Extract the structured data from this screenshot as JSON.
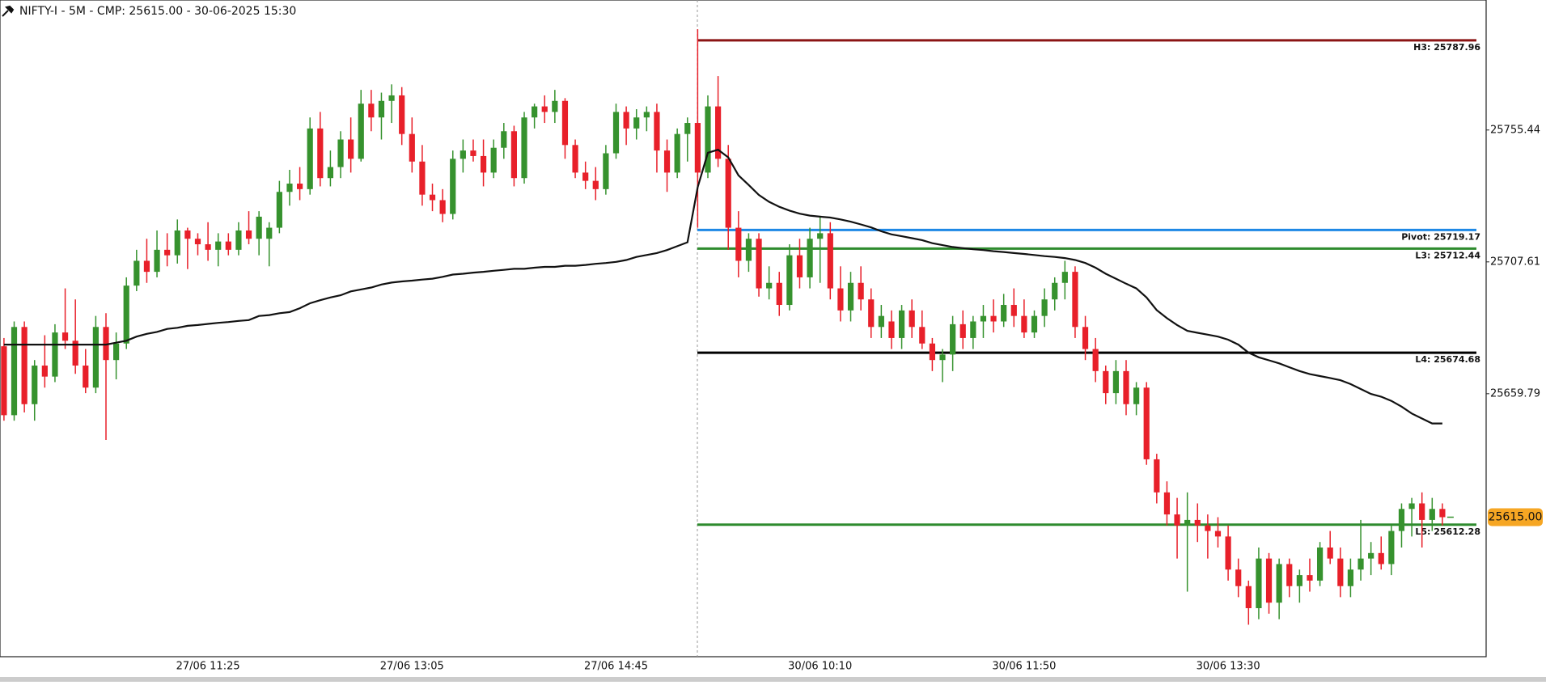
{
  "chart_data": {
    "type": "candlestick",
    "title": "NIFTY-I - 5M -  CMP: 25615.00 - 30-06-2025 15:30",
    "ylim": [
      25564.4,
      25802.6
    ],
    "yticks": [
      25659.79,
      25707.61,
      25755.44
    ],
    "up_color": "#36922e",
    "down_color": "#e8202a",
    "line_color": "#111111",
    "last_price": {
      "value": 25615,
      "label": "25615.00",
      "color": "#f6a623"
    },
    "categories": [
      null,
      null,
      null,
      null,
      null,
      null,
      null,
      null,
      null,
      null,
      null,
      null,
      null,
      null,
      null,
      null,
      null,
      null,
      null,
      null,
      "27/06 11:25",
      null,
      null,
      null,
      null,
      null,
      null,
      null,
      null,
      null,
      null,
      null,
      null,
      null,
      null,
      null,
      null,
      null,
      null,
      null,
      "27/06 13:05",
      null,
      null,
      null,
      null,
      null,
      null,
      null,
      null,
      null,
      null,
      null,
      null,
      null,
      null,
      null,
      null,
      null,
      null,
      null,
      "27/06 14:45",
      null,
      null,
      null,
      null,
      null,
      null,
      null,
      null,
      null,
      null,
      null,
      null,
      null,
      null,
      null,
      null,
      null,
      null,
      null,
      "30/06 10:10",
      null,
      null,
      null,
      null,
      null,
      null,
      null,
      null,
      null,
      null,
      null,
      null,
      null,
      null,
      null,
      null,
      null,
      null,
      null,
      "30/06 11:50",
      null,
      null,
      null,
      null,
      null,
      null,
      null,
      null,
      null,
      null,
      null,
      null,
      null,
      null,
      null,
      null,
      null,
      null,
      null,
      "30/06 13:30",
      null,
      null,
      null,
      null,
      null,
      null,
      null,
      null,
      null,
      null,
      null,
      null,
      null,
      null,
      null,
      null,
      null,
      null,
      null,
      null
    ],
    "ohlc": [
      [
        25677,
        25680,
        25650,
        25652
      ],
      [
        25652,
        25686,
        25650,
        25684
      ],
      [
        25684,
        25686,
        25653,
        25656
      ],
      [
        25656,
        25672,
        25650,
        25670
      ],
      [
        25670,
        25681,
        25662,
        25666
      ],
      [
        25666,
        25685,
        25664,
        25682
      ],
      [
        25682,
        25698,
        25676,
        25679
      ],
      [
        25679,
        25694,
        25667,
        25670
      ],
      [
        25670,
        25676,
        25660,
        25662
      ],
      [
        25662,
        25688,
        25660,
        25684
      ],
      [
        25684,
        25689,
        25643,
        25672
      ],
      [
        25672,
        25682,
        25665,
        25678
      ],
      [
        25678,
        25702,
        25676,
        25699
      ],
      [
        25699,
        25712,
        25697,
        25708
      ],
      [
        25708,
        25716,
        25700,
        25704
      ],
      [
        25704,
        25719,
        25702,
        25712
      ],
      [
        25712,
        25718,
        25706,
        25710
      ],
      [
        25710,
        25723,
        25707,
        25719
      ],
      [
        25719,
        25720,
        25705,
        25716
      ],
      [
        25716,
        25718,
        25710,
        25714
      ],
      [
        25714,
        25722,
        25708,
        25712
      ],
      [
        25712,
        25718,
        25706,
        25715
      ],
      [
        25715,
        25718,
        25710,
        25712
      ],
      [
        25712,
        25722,
        25710,
        25719
      ],
      [
        25719,
        25726,
        25714,
        25716
      ],
      [
        25716,
        25726,
        25710,
        25724
      ],
      [
        25716,
        25722,
        25706,
        25720
      ],
      [
        25720,
        25737,
        25718,
        25733
      ],
      [
        25733,
        25741,
        25728,
        25736
      ],
      [
        25736,
        25742,
        25730,
        25734
      ],
      [
        25734,
        25760,
        25732,
        25756
      ],
      [
        25756,
        25762,
        25735,
        25738
      ],
      [
        25738,
        25748,
        25735,
        25742
      ],
      [
        25742,
        25755,
        25738,
        25752
      ],
      [
        25752,
        25760,
        25740,
        25745
      ],
      [
        25745,
        25770,
        25744,
        25765
      ],
      [
        25765,
        25770,
        25755,
        25760
      ],
      [
        25760,
        25769,
        25752,
        25766
      ],
      [
        25766,
        25772,
        25758,
        25768
      ],
      [
        25768,
        25771,
        25750,
        25754
      ],
      [
        25754,
        25760,
        25740,
        25744
      ],
      [
        25744,
        25750,
        25728,
        25732
      ],
      [
        25732,
        25736,
        25726,
        25730
      ],
      [
        25730,
        25734,
        25722,
        25725
      ],
      [
        25725,
        25748,
        25723,
        25745
      ],
      [
        25745,
        25752,
        25740,
        25748
      ],
      [
        25748,
        25752,
        25744,
        25746
      ],
      [
        25746,
        25752,
        25735,
        25740
      ],
      [
        25740,
        25752,
        25738,
        25749
      ],
      [
        25749,
        25758,
        25745,
        25755
      ],
      [
        25755,
        25757,
        25735,
        25738
      ],
      [
        25738,
        25762,
        25736,
        25760
      ],
      [
        25760,
        25765,
        25756,
        25764
      ],
      [
        25764,
        25768,
        25758,
        25762
      ],
      [
        25762,
        25770,
        25758,
        25766
      ],
      [
        25766,
        25767,
        25745,
        25750
      ],
      [
        25750,
        25752,
        25738,
        25740
      ],
      [
        25740,
        25744,
        25734,
        25737
      ],
      [
        25737,
        25742,
        25730,
        25734
      ],
      [
        25734,
        25750,
        25732,
        25747
      ],
      [
        25747,
        25765,
        25745,
        25762
      ],
      [
        25762,
        25764,
        25750,
        25756
      ],
      [
        25756,
        25763,
        25752,
        25760
      ],
      [
        25760,
        25764,
        25755,
        25762
      ],
      [
        25762,
        25765,
        25740,
        25748
      ],
      [
        25748,
        25752,
        25733,
        25740
      ],
      [
        25740,
        25756,
        25738,
        25754
      ],
      [
        25754,
        25760,
        25744,
        25758
      ],
      [
        25758,
        25792,
        25720,
        25740
      ],
      [
        25740,
        25768,
        25738,
        25764
      ],
      [
        25764,
        25775,
        25742,
        25745
      ],
      [
        25745,
        25750,
        25712,
        25720
      ],
      [
        25720,
        25726,
        25702,
        25708
      ],
      [
        25708,
        25718,
        25704,
        25716
      ],
      [
        25716,
        25718,
        25695,
        25698
      ],
      [
        25698,
        25706,
        25694,
        25700
      ],
      [
        25700,
        25704,
        25688,
        25692
      ],
      [
        25692,
        25714,
        25690,
        25710
      ],
      [
        25710,
        25716,
        25698,
        25702
      ],
      [
        25702,
        25720,
        25698,
        25716
      ],
      [
        25716,
        25724,
        25700,
        25718
      ],
      [
        25718,
        25722,
        25694,
        25698
      ],
      [
        25698,
        25706,
        25686,
        25690
      ],
      [
        25690,
        25704,
        25686,
        25700
      ],
      [
        25700,
        25706,
        25690,
        25694
      ],
      [
        25694,
        25698,
        25680,
        25684
      ],
      [
        25684,
        25692,
        25680,
        25688
      ],
      [
        25686,
        25690,
        25676,
        25680
      ],
      [
        25680,
        25692,
        25676,
        25690
      ],
      [
        25690,
        25694,
        25680,
        25684
      ],
      [
        25684,
        25690,
        25676,
        25678
      ],
      [
        25678,
        25680,
        25668,
        25672
      ],
      [
        25672,
        25676,
        25664,
        25674
      ],
      [
        25674,
        25688,
        25668,
        25685
      ],
      [
        25685,
        25690,
        25676,
        25680
      ],
      [
        25680,
        25688,
        25676,
        25686
      ],
      [
        25686,
        25692,
        25680,
        25688
      ],
      [
        25688,
        25694,
        25682,
        25686
      ],
      [
        25686,
        25696,
        25684,
        25692
      ],
      [
        25692,
        25698,
        25684,
        25688
      ],
      [
        25688,
        25694,
        25680,
        25682
      ],
      [
        25682,
        25690,
        25680,
        25688
      ],
      [
        25688,
        25698,
        25684,
        25694
      ],
      [
        25694,
        25702,
        25690,
        25700
      ],
      [
        25700,
        25708,
        25694,
        25704
      ],
      [
        25704,
        25706,
        25680,
        25684
      ],
      [
        25684,
        25688,
        25672,
        25676
      ],
      [
        25676,
        25680,
        25664,
        25668
      ],
      [
        25668,
        25670,
        25656,
        25660
      ],
      [
        25660,
        25672,
        25656,
        25668
      ],
      [
        25668,
        25672,
        25652,
        25656
      ],
      [
        25656,
        25664,
        25652,
        25662
      ],
      [
        25662,
        25664,
        25634,
        25636
      ],
      [
        25636,
        25638,
        25620,
        25624
      ],
      [
        25624,
        25628,
        25612,
        25616
      ],
      [
        25616,
        25622,
        25600,
        25612
      ],
      [
        25612,
        25624,
        25588,
        25614
      ],
      [
        25614,
        25620,
        25606,
        25612
      ],
      [
        25612,
        25616,
        25600,
        25610
      ],
      [
        25610,
        25615,
        25604,
        25608
      ],
      [
        25608,
        25612,
        25592,
        25596
      ],
      [
        25596,
        25600,
        25586,
        25590
      ],
      [
        25590,
        25592,
        25576,
        25582
      ],
      [
        25582,
        25604,
        25578,
        25600
      ],
      [
        25600,
        25602,
        25580,
        25584
      ],
      [
        25584,
        25600,
        25578,
        25598
      ],
      [
        25598,
        25600,
        25586,
        25590
      ],
      [
        25590,
        25596,
        25584,
        25594
      ],
      [
        25594,
        25600,
        25588,
        25592
      ],
      [
        25592,
        25606,
        25590,
        25604
      ],
      [
        25604,
        25610,
        25598,
        25600
      ],
      [
        25600,
        25604,
        25586,
        25590
      ],
      [
        25590,
        25600,
        25586,
        25596
      ],
      [
        25596,
        25614,
        25592,
        25600
      ],
      [
        25600,
        25606,
        25594,
        25602
      ],
      [
        25602,
        25608,
        25596,
        25598
      ],
      [
        25598,
        25612,
        25594,
        25610
      ],
      [
        25610,
        25620,
        25604,
        25618
      ],
      [
        25618,
        25622,
        25608,
        25620
      ],
      [
        25620,
        25624,
        25604,
        25614
      ],
      [
        25614,
        25622,
        25610,
        25618
      ],
      [
        25618,
        25620,
        25612,
        25615
      ]
    ],
    "line_values": [
      25677.6,
      25677.6,
      25677.6,
      25677.6,
      25677.6,
      25677.6,
      25677.6,
      25677.6,
      25677.6,
      25677.6,
      25677.6,
      25678.3,
      25679.0,
      25680.5,
      25681.5,
      25682.2,
      25683.3,
      25683.7,
      25684.4,
      25684.7,
      25685.1,
      25685.5,
      25685.8,
      25686.2,
      25686.5,
      25688.0,
      25688.3,
      25689.0,
      25689.4,
      25690.8,
      25692.6,
      25693.7,
      25694.7,
      25695.5,
      25696.9,
      25697.6,
      25698.3,
      25699.4,
      25700.1,
      25700.5,
      25700.8,
      25701.2,
      25701.5,
      25702.2,
      25703.0,
      25703.3,
      25703.7,
      25704.0,
      25704.4,
      25704.7,
      25705.1,
      25705.1,
      25705.5,
      25705.8,
      25705.8,
      25706.2,
      25706.2,
      25706.5,
      25706.9,
      25707.2,
      25707.6,
      25708.3,
      25709.4,
      25710.1,
      25710.8,
      25711.9,
      25713.3,
      25714.7,
      25734.7,
      25747.2,
      25748.3,
      25745.5,
      25739.0,
      25735.5,
      25731.9,
      25729.4,
      25727.6,
      25726.2,
      25725.1,
      25724.4,
      25724.0,
      25723.7,
      25723.0,
      25722.2,
      25721.2,
      25720.1,
      25718.7,
      25717.6,
      25716.9,
      25716.2,
      25715.5,
      25714.4,
      25713.7,
      25713.0,
      25712.6,
      25712.2,
      25711.9,
      25711.5,
      25711.2,
      25710.8,
      25710.5,
      25710.1,
      25709.7,
      25709.4,
      25709.0,
      25708.3,
      25707.2,
      25705.5,
      25703.3,
      25701.5,
      25699.7,
      25698.0,
      25694.7,
      25690.1,
      25687.2,
      25684.7,
      25682.6,
      25681.9,
      25681.2,
      25680.5,
      25679.4,
      25677.6,
      25674.7,
      25673.0,
      25671.9,
      25670.8,
      25669.4,
      25668.0,
      25666.9,
      25666.2,
      25665.5,
      25664.7,
      25663.3,
      25661.5,
      25659.7,
      25658.7,
      25657.2,
      25655.1,
      25652.6,
      25650.8,
      25649.0,
      25649.0
    ],
    "levels": [
      {
        "label": "H3: 25787.96",
        "value": 25787.96,
        "color": "#8b1414"
      },
      {
        "label": "Pivot: 25719.17",
        "value": 25719.17,
        "color": "#1e88e5"
      },
      {
        "label": "L3: 25712.44",
        "value": 25712.44,
        "color": "#2e8b2e"
      },
      {
        "label": "L4: 25674.68",
        "value": 25674.68,
        "color": "#000000"
      },
      {
        "label": "L5: 25612.28",
        "value": 25612.28,
        "color": "#2e8b2e"
      }
    ]
  }
}
